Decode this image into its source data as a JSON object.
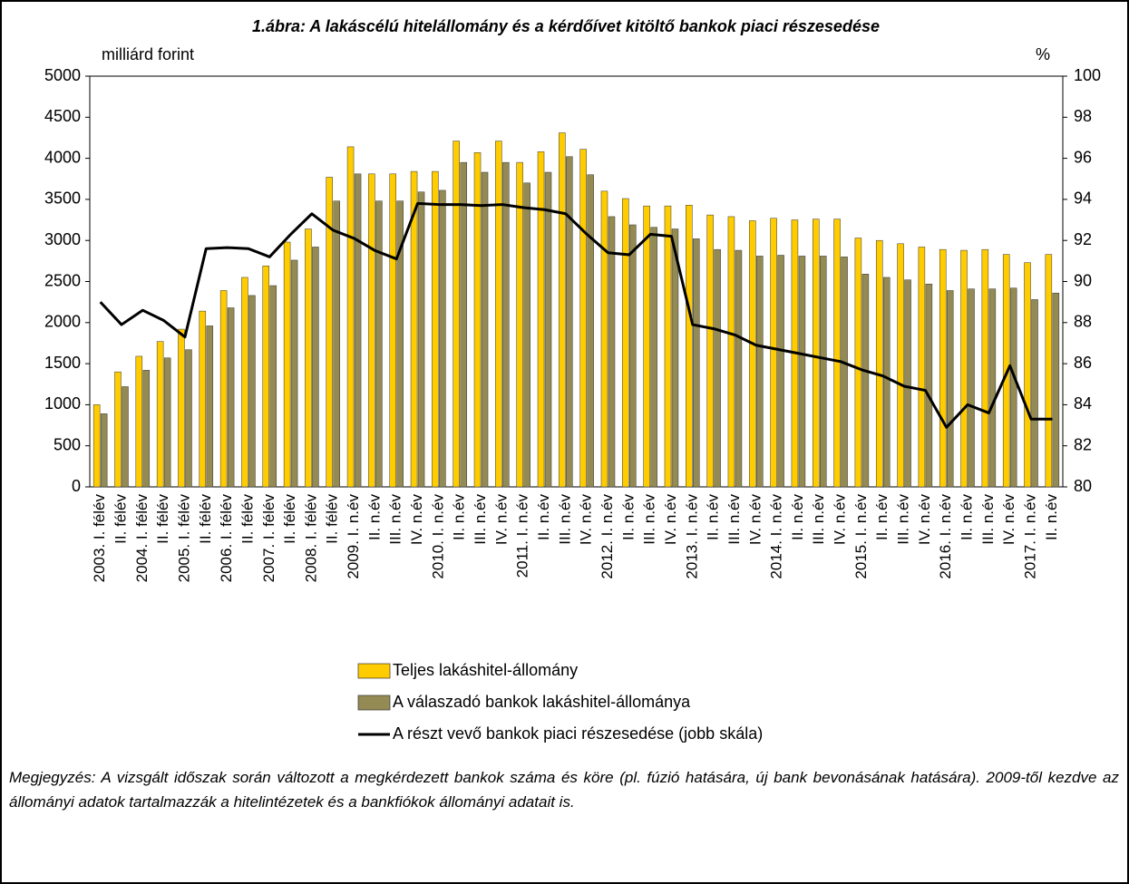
{
  "chart_data": {
    "type": "bar",
    "title": "1.ábra: A lakáscélú hitelállomány és a kérdőívet kitöltő bankok piaci részesedése",
    "y_label": "milliárd forint",
    "y2_label": "%",
    "categories": [
      "2003. I. félév",
      "II. félév",
      "2004. I. félév",
      "II. félév",
      "2005. I. félév",
      "II. félév",
      "2006. I. félév",
      "II. félév",
      "2007. I. félév",
      "II. félév",
      "2008. I. félév",
      "II. félév",
      "2009. I. n.év",
      "II. n.év",
      "III. n.év",
      "IV. n.év",
      "2010. I. n.év",
      "II. n.év",
      "III. n.év",
      "IV. n.év",
      "2011. I. n.év",
      "II. n.év",
      "III. n.év",
      "IV. n.év",
      "2012. I. n.év",
      "II. n.év",
      "III. n.év",
      "IV. n.év",
      "2013. I. n.év",
      "II. n.év",
      "III. n.év",
      "IV. n.év",
      "2014. I. n.év",
      "II. n.év",
      "III. n.év",
      "IV. n.év",
      "2015. I. n.év",
      "II. n.év",
      "III. n.év",
      "IV. n.év",
      "2016. I. n.év",
      "II. n.év",
      "III. n.év",
      "IV. n.év",
      "2017. I. n.év",
      "II. n.év"
    ],
    "series": [
      {
        "name": "Teljes lakáshitel-állomány",
        "type": "bar",
        "color": "#ffcc00",
        "values": [
          1000,
          1400,
          1590,
          1770,
          1920,
          2140,
          2390,
          2550,
          2690,
          2980,
          3140,
          3770,
          4140,
          3810,
          3810,
          3840,
          3840,
          4210,
          4070,
          4210,
          3950,
          4080,
          4310,
          4110,
          3600,
          3510,
          3420,
          3420,
          3430,
          3310,
          3290,
          3240,
          3270,
          3250,
          3260,
          3260,
          3030,
          3000,
          2960,
          2920,
          2890,
          2880,
          2890,
          2830,
          2730,
          2830
        ]
      },
      {
        "name": "A válaszadó bankok lakáshitel-állománya",
        "type": "bar",
        "color": "#948a54",
        "values": [
          890,
          1220,
          1420,
          1570,
          1670,
          1960,
          2180,
          2330,
          2450,
          2760,
          2920,
          3480,
          3810,
          3480,
          3480,
          3590,
          3610,
          3950,
          3830,
          3950,
          3700,
          3830,
          4020,
          3800,
          3290,
          3190,
          3160,
          3140,
          3020,
          2890,
          2880,
          2810,
          2820,
          2810,
          2810,
          2800,
          2590,
          2550,
          2520,
          2470,
          2390,
          2410,
          2410,
          2420,
          2280,
          2360
        ]
      },
      {
        "name": "A részt vevő bankok piaci részesedése (jobb skála)",
        "type": "line",
        "axis": "y2",
        "color": "#000000",
        "values": [
          89.0,
          87.9,
          88.6,
          88.1,
          87.3,
          91.6,
          91.65,
          91.6,
          91.2,
          92.3,
          93.3,
          92.5,
          92.1,
          91.5,
          91.1,
          93.8,
          93.75,
          93.75,
          93.7,
          93.75,
          93.6,
          93.5,
          93.3,
          92.3,
          91.4,
          91.3,
          92.3,
          92.2,
          87.9,
          87.7,
          87.4,
          86.9,
          86.7,
          86.5,
          86.3,
          86.1,
          85.7,
          85.4,
          84.9,
          84.7,
          82.9,
          84.0,
          83.6,
          85.9,
          83.3,
          83.3
        ]
      }
    ],
    "ylim": [
      0,
      5000
    ],
    "yticks": [
      0,
      500,
      1000,
      1500,
      2000,
      2500,
      3000,
      3500,
      4000,
      4500,
      5000
    ],
    "y2lim": [
      80,
      100
    ],
    "y2ticks": [
      80,
      82,
      84,
      86,
      88,
      90,
      92,
      94,
      96,
      98,
      100
    ],
    "note": "Megjegyzés: A vizsgált időszak során változott a megkérdezett bankok száma és köre (pl. fúzió hatására, új bank bevonásának hatására). 2009-től kezdve az állományi adatok tartalmazzák a hitelintézetek és a bankfiókok állományi adatait is."
  }
}
